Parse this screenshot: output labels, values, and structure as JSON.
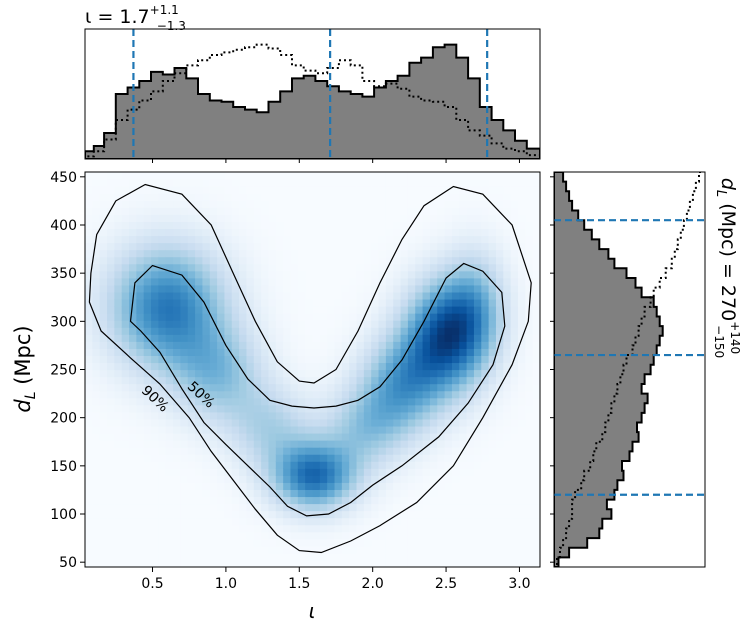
{
  "chart_data": [
    {
      "type": "heatmap",
      "panel": "joint",
      "xlabel": "ι",
      "ylabel": "d_L (Mpc)",
      "xlim": [
        0.04,
        3.14
      ],
      "ylim": [
        45,
        455
      ],
      "xticks": [
        0.5,
        1.0,
        1.5,
        2.0,
        2.5,
        3.0
      ],
      "xtick_labels": [
        "0.5",
        "1.0",
        "1.5",
        "2.0",
        "2.5",
        "3.0"
      ],
      "yticks": [
        50,
        100,
        150,
        200,
        250,
        300,
        350,
        400,
        450
      ],
      "ytick_labels": [
        "50",
        "100",
        "150",
        "200",
        "250",
        "300",
        "350",
        "400",
        "450"
      ],
      "colormap": "Blues",
      "density_peaks": [
        {
          "x": 0.6,
          "y": 315,
          "sx": 0.28,
          "sy": 45,
          "w": 0.85
        },
        {
          "x": 0.95,
          "y": 245,
          "sx": 0.22,
          "sy": 35,
          "w": 0.45
        },
        {
          "x": 1.6,
          "y": 140,
          "sx": 0.2,
          "sy": 25,
          "w": 0.9
        },
        {
          "x": 1.3,
          "y": 190,
          "sx": 0.2,
          "sy": 30,
          "w": 0.35
        },
        {
          "x": 1.95,
          "y": 190,
          "sx": 0.2,
          "sy": 30,
          "w": 0.4
        },
        {
          "x": 2.5,
          "y": 285,
          "sx": 0.2,
          "sy": 40,
          "w": 1.0
        },
        {
          "x": 2.2,
          "y": 235,
          "sx": 0.2,
          "sy": 35,
          "w": 0.6
        },
        {
          "x": 2.7,
          "y": 320,
          "sx": 0.15,
          "sy": 40,
          "w": 0.4
        }
      ],
      "contours": [
        {
          "label": "50%",
          "points": [
            [
              0.35,
              300
            ],
            [
              0.38,
              340
            ],
            [
              0.5,
              358
            ],
            [
              0.7,
              348
            ],
            [
              0.85,
              320
            ],
            [
              1.0,
              275
            ],
            [
              1.15,
              240
            ],
            [
              1.3,
              218
            ],
            [
              1.45,
              212
            ],
            [
              1.6,
              210
            ],
            [
              1.75,
              212
            ],
            [
              1.9,
              218
            ],
            [
              2.05,
              232
            ],
            [
              2.2,
              260
            ],
            [
              2.35,
              300
            ],
            [
              2.5,
              345
            ],
            [
              2.62,
              360
            ],
            [
              2.75,
              352
            ],
            [
              2.88,
              330
            ],
            [
              2.9,
              295
            ],
            [
              2.82,
              255
            ],
            [
              2.65,
              215
            ],
            [
              2.45,
              180
            ],
            [
              2.2,
              150
            ],
            [
              2.0,
              130
            ],
            [
              1.85,
              112
            ],
            [
              1.7,
              100
            ],
            [
              1.55,
              98
            ],
            [
              1.42,
              108
            ],
            [
              1.3,
              128
            ],
            [
              1.15,
              150
            ],
            [
              1.0,
              172
            ],
            [
              0.85,
              195
            ],
            [
              0.7,
              230
            ],
            [
              0.55,
              268
            ],
            [
              0.42,
              290
            ],
            [
              0.35,
              300
            ]
          ]
        },
        {
          "label": "90%",
          "points": [
            [
              0.08,
              350
            ],
            [
              0.12,
              390
            ],
            [
              0.25,
              425
            ],
            [
              0.45,
              442
            ],
            [
              0.7,
              432
            ],
            [
              0.9,
              400
            ],
            [
              1.05,
              350
            ],
            [
              1.2,
              300
            ],
            [
              1.35,
              258
            ],
            [
              1.5,
              238
            ],
            [
              1.6,
              236
            ],
            [
              1.75,
              250
            ],
            [
              1.9,
              290
            ],
            [
              2.05,
              340
            ],
            [
              2.2,
              385
            ],
            [
              2.35,
              420
            ],
            [
              2.55,
              440
            ],
            [
              2.75,
              432
            ],
            [
              2.95,
              400
            ],
            [
              3.08,
              340
            ],
            [
              3.06,
              300
            ],
            [
              2.95,
              255
            ],
            [
              2.75,
              200
            ],
            [
              2.55,
              150
            ],
            [
              2.3,
              112
            ],
            [
              2.05,
              88
            ],
            [
              1.85,
              72
            ],
            [
              1.65,
              60
            ],
            [
              1.5,
              62
            ],
            [
              1.35,
              78
            ],
            [
              1.2,
              105
            ],
            [
              1.05,
              135
            ],
            [
              0.9,
              165
            ],
            [
              0.75,
              200
            ],
            [
              0.55,
              235
            ],
            [
              0.35,
              262
            ],
            [
              0.15,
              290
            ],
            [
              0.07,
              320
            ],
            [
              0.08,
              350
            ]
          ]
        }
      ]
    },
    {
      "type": "area",
      "panel": "top-marginal",
      "title": "ι = 1.7",
      "title_superscript": "+1.1",
      "title_subscript": "−1.3",
      "xlim": [
        0.04,
        3.14
      ],
      "ylim": [
        0,
        1
      ],
      "series": [
        {
          "style": "step-filled",
          "x": [
            0.04,
            0.1,
            0.17,
            0.25,
            0.33,
            0.41,
            0.49,
            0.57,
            0.65,
            0.73,
            0.81,
            0.89,
            0.97,
            1.05,
            1.13,
            1.21,
            1.29,
            1.37,
            1.45,
            1.53,
            1.61,
            1.69,
            1.77,
            1.85,
            1.93,
            2.01,
            2.09,
            2.17,
            2.25,
            2.33,
            2.41,
            2.49,
            2.57,
            2.65,
            2.73,
            2.81,
            2.89,
            2.97,
            3.05,
            3.14
          ],
          "values": [
            0.06,
            0.1,
            0.2,
            0.5,
            0.55,
            0.6,
            0.67,
            0.65,
            0.7,
            0.62,
            0.5,
            0.45,
            0.44,
            0.4,
            0.38,
            0.36,
            0.44,
            0.52,
            0.62,
            0.64,
            0.6,
            0.56,
            0.52,
            0.5,
            0.48,
            0.55,
            0.6,
            0.64,
            0.74,
            0.78,
            0.86,
            0.88,
            0.78,
            0.62,
            0.4,
            0.3,
            0.22,
            0.14,
            0.08,
            0.04
          ]
        },
        {
          "style": "dotted",
          "x": [
            0.04,
            0.1,
            0.17,
            0.25,
            0.33,
            0.41,
            0.49,
            0.57,
            0.65,
            0.73,
            0.81,
            0.89,
            0.97,
            1.05,
            1.13,
            1.21,
            1.29,
            1.37,
            1.45,
            1.53,
            1.61,
            1.69,
            1.77,
            1.85,
            1.93,
            2.01,
            2.09,
            2.17,
            2.25,
            2.33,
            2.41,
            2.49,
            2.57,
            2.65,
            2.73,
            2.81,
            2.89,
            2.97,
            3.05,
            3.14
          ],
          "values": [
            0.02,
            0.06,
            0.15,
            0.3,
            0.38,
            0.45,
            0.52,
            0.6,
            0.66,
            0.72,
            0.76,
            0.8,
            0.82,
            0.84,
            0.86,
            0.88,
            0.85,
            0.8,
            0.72,
            0.68,
            0.66,
            0.7,
            0.76,
            0.72,
            0.6,
            0.56,
            0.58,
            0.54,
            0.48,
            0.45,
            0.44,
            0.4,
            0.3,
            0.22,
            0.18,
            0.12,
            0.08,
            0.06,
            0.03,
            0.02
          ]
        }
      ],
      "vlines": [
        0.37,
        1.71,
        2.78
      ],
      "vline_color": "#1f77b4"
    },
    {
      "type": "area",
      "panel": "right-marginal",
      "title": "d_L (Mpc) = 270",
      "title_superscript": "+140",
      "title_subscript": "−150",
      "ylim": [
        45,
        455
      ],
      "xlim": [
        0,
        1
      ],
      "series": [
        {
          "style": "step-filled",
          "y": [
            45,
            55,
            65,
            75,
            85,
            95,
            105,
            115,
            125,
            135,
            145,
            155,
            165,
            175,
            185,
            195,
            205,
            215,
            225,
            235,
            245,
            255,
            265,
            275,
            285,
            295,
            305,
            315,
            325,
            335,
            345,
            355,
            365,
            375,
            385,
            395,
            405,
            415,
            425,
            435,
            445,
            455
          ],
          "values": [
            0.03,
            0.1,
            0.22,
            0.3,
            0.32,
            0.38,
            0.35,
            0.4,
            0.42,
            0.46,
            0.45,
            0.5,
            0.52,
            0.56,
            0.55,
            0.58,
            0.6,
            0.62,
            0.58,
            0.6,
            0.64,
            0.66,
            0.68,
            0.7,
            0.72,
            0.7,
            0.68,
            0.66,
            0.58,
            0.54,
            0.48,
            0.4,
            0.36,
            0.3,
            0.25,
            0.2,
            0.16,
            0.12,
            0.1,
            0.08,
            0.06,
            0.04
          ]
        },
        {
          "style": "dotted",
          "y": [
            45,
            55,
            65,
            75,
            85,
            95,
            105,
            115,
            125,
            135,
            145,
            155,
            165,
            175,
            185,
            195,
            205,
            215,
            225,
            235,
            245,
            255,
            265,
            275,
            285,
            295,
            305,
            315,
            325,
            335,
            345,
            355,
            365,
            375,
            385,
            395,
            405,
            415,
            425,
            435,
            445,
            455
          ],
          "values": [
            0.02,
            0.04,
            0.06,
            0.08,
            0.1,
            0.12,
            0.12,
            0.14,
            0.18,
            0.2,
            0.24,
            0.26,
            0.28,
            0.32,
            0.34,
            0.36,
            0.38,
            0.4,
            0.42,
            0.44,
            0.46,
            0.48,
            0.52,
            0.54,
            0.56,
            0.58,
            0.6,
            0.64,
            0.66,
            0.7,
            0.74,
            0.78,
            0.8,
            0.82,
            0.84,
            0.86,
            0.88,
            0.9,
            0.92,
            0.94,
            0.96,
            0.98
          ]
        }
      ],
      "hlines": [
        120,
        265,
        405
      ],
      "hline_color": "#1f77b4"
    }
  ]
}
